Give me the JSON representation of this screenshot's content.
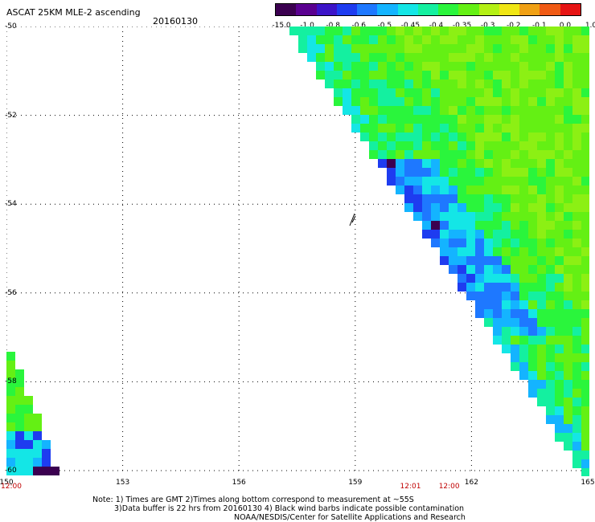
{
  "header": {
    "title": "ASCAT 25KM MLE-2 ascending",
    "date": "20160130"
  },
  "colorbar": {
    "labels": [
      "-15.0",
      "-1.0",
      "-0.8",
      "-0.6",
      "-0.5",
      "-0.45",
      "-0.4",
      "-0.35",
      "-0.3",
      "-0.2",
      "-0.1",
      "0.0",
      "1.0"
    ],
    "colors": [
      "#3b0050",
      "#5a0090",
      "#3c14c8",
      "#1e3cf0",
      "#1e78ff",
      "#14b4ff",
      "#14e6e6",
      "#14f0a0",
      "#2af53c",
      "#64f014",
      "#b4f014",
      "#f0e614",
      "#f0a014",
      "#f05a14",
      "#e61414"
    ]
  },
  "map": {
    "lat_labels": [
      "-50",
      "-52",
      "-54",
      "-56",
      "-58",
      "-60"
    ],
    "lon_labels": [
      "150",
      "153",
      "156",
      "159",
      "162",
      "165"
    ],
    "time_labels": [
      {
        "text": "12:00",
        "lon": 150
      },
      {
        "text": "12:01",
        "lon": 160.3
      },
      {
        "text": "12:00",
        "lon": 161.3
      }
    ]
  },
  "notes": {
    "line1": "Note: 1) Times are GMT 2)Times along bottom correspond to measurement at ~55S",
    "line2": "3)Data buffer is 22 hrs from 20160130 4) Black wind barbs indicate possible contamination",
    "line3": "NOAA/NESDIS/Center for Satellite Applications and Research"
  }
}
